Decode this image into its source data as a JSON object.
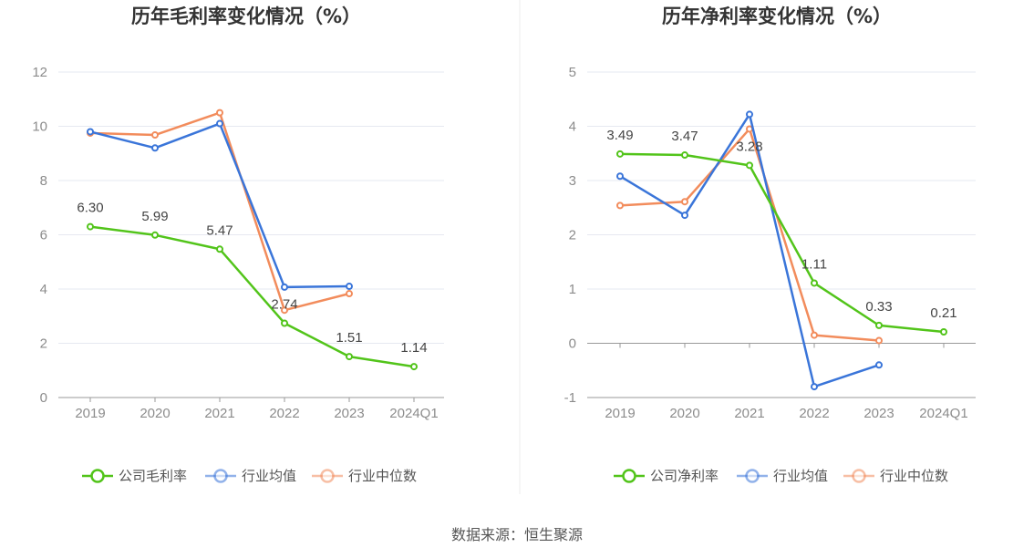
{
  "source_label": "数据来源：恒生聚源",
  "chart_data": [
    {
      "type": "line",
      "title": "历年毛利率变化情况（%）",
      "categories": [
        "2019",
        "2020",
        "2021",
        "2022",
        "2023",
        "2024Q1"
      ],
      "ylim": [
        0,
        12
      ],
      "yticks": [
        "0",
        "2",
        "4",
        "6",
        "8",
        "10",
        "12"
      ],
      "grid": true,
      "legend_position": "bottom",
      "series": [
        {
          "name": "公司毛利率",
          "color": "#52c41a",
          "labeled": true,
          "values": [
            6.3,
            5.99,
            5.47,
            2.74,
            1.51,
            1.14
          ],
          "labels": [
            "6.30",
            "5.99",
            "5.47",
            "2.74",
            "1.51",
            "1.14"
          ]
        },
        {
          "name": "行业均值",
          "color": "#3a75d9",
          "labeled": false,
          "values": [
            9.8,
            9.2,
            10.1,
            4.07,
            4.1,
            null
          ]
        },
        {
          "name": "行业中位数",
          "color": "#f28c5c",
          "labeled": false,
          "values": [
            9.75,
            9.68,
            10.5,
            3.22,
            3.83,
            null
          ]
        }
      ]
    },
    {
      "type": "line",
      "title": "历年净利率变化情况（%）",
      "categories": [
        "2019",
        "2020",
        "2021",
        "2022",
        "2023",
        "2024Q1"
      ],
      "ylim": [
        -1,
        5
      ],
      "yticks": [
        "-1",
        "0",
        "1",
        "2",
        "3",
        "4",
        "5"
      ],
      "grid": true,
      "legend_position": "bottom",
      "series": [
        {
          "name": "公司净利率",
          "color": "#52c41a",
          "labeled": true,
          "values": [
            3.49,
            3.47,
            3.28,
            1.11,
            0.33,
            0.21
          ],
          "labels": [
            "3.49",
            "3.47",
            "3.28",
            "1.11",
            "0.33",
            "0.21"
          ]
        },
        {
          "name": "行业均值",
          "color": "#3a75d9",
          "labeled": false,
          "values": [
            3.08,
            2.36,
            4.22,
            -0.8,
            -0.4,
            null
          ]
        },
        {
          "name": "行业中位数",
          "color": "#f28c5c",
          "labeled": false,
          "values": [
            2.54,
            2.61,
            3.95,
            0.15,
            0.05,
            null
          ]
        }
      ]
    }
  ]
}
